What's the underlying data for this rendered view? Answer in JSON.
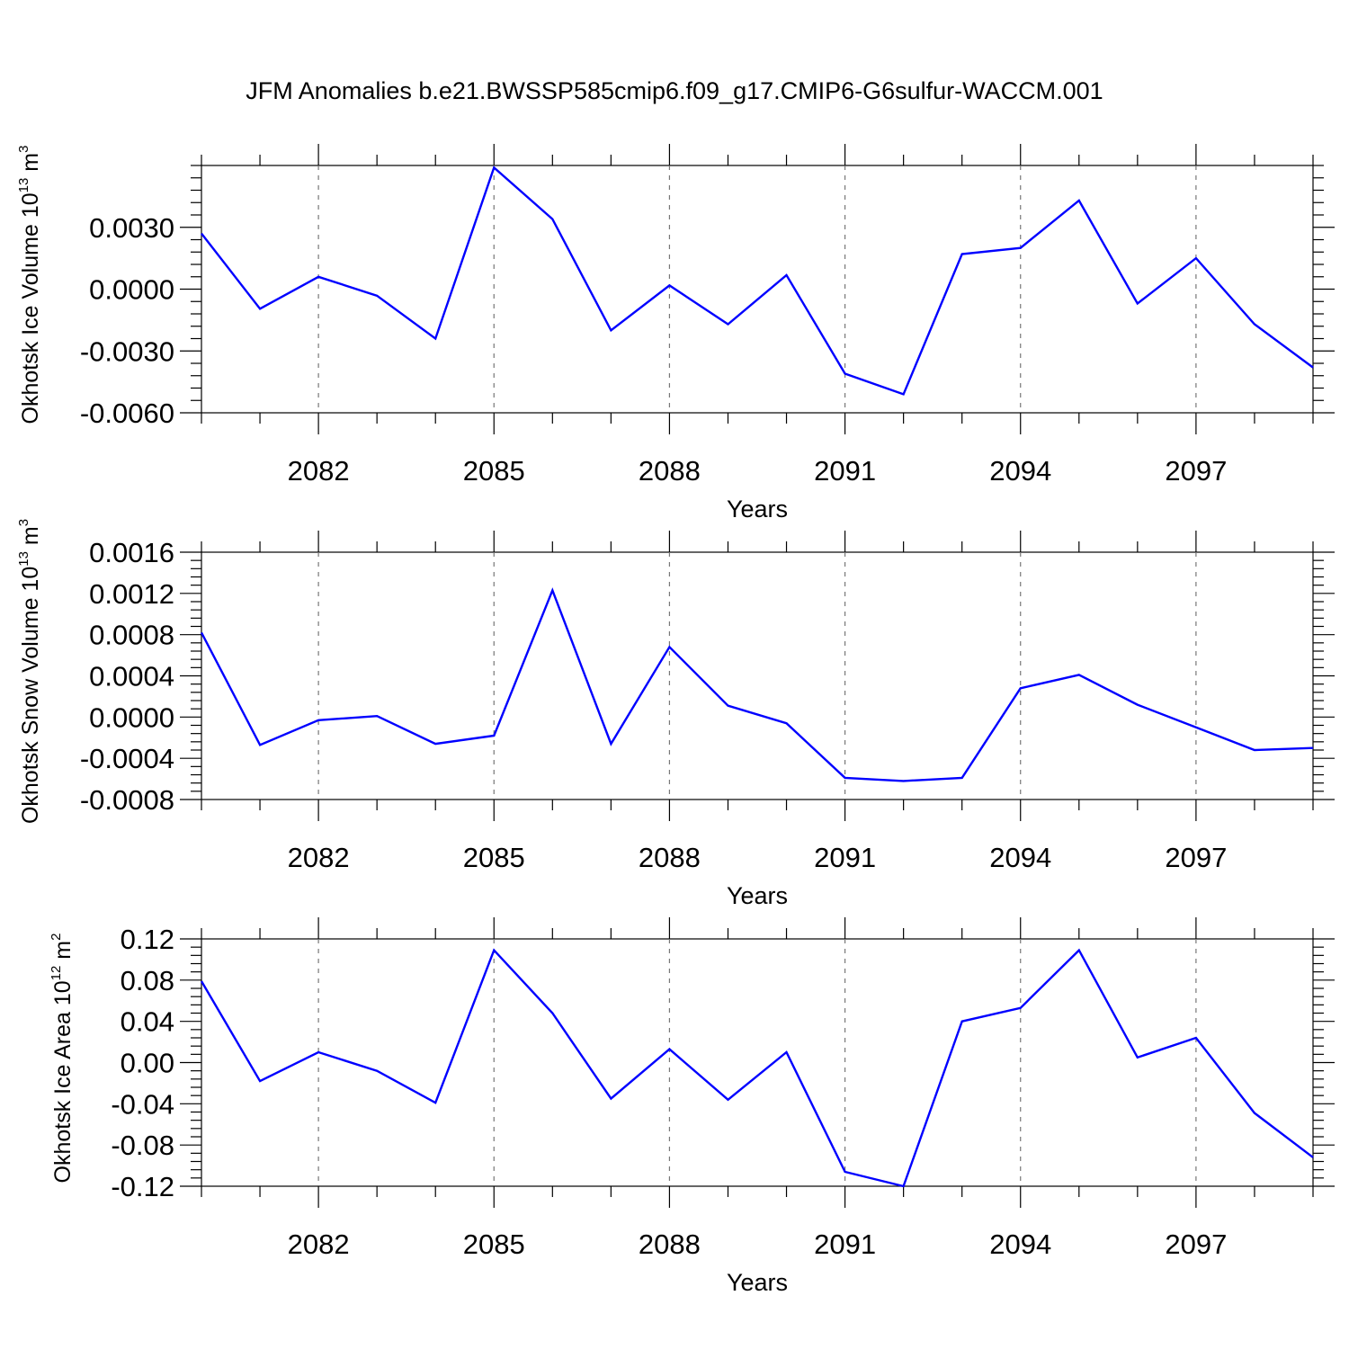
{
  "figure_title": "JFM Anomalies b.e21.BWSSP585cmip6.f09_g17.CMIP6-G6sulfur-WACCM.001",
  "colors": {
    "line": "#0000ff",
    "axis": "#000000",
    "grid": "#777777"
  },
  "chart_data": [
    {
      "type": "line",
      "ylabel": {
        "main": "Okhotsk Ice Volume 10",
        "sup": "13",
        "unit": " m",
        "unit_sup": "3"
      },
      "xlabel": "Years",
      "x": [
        2080,
        2081,
        2082,
        2083,
        2084,
        2085,
        2086,
        2087,
        2088,
        2089,
        2090,
        2091,
        2092,
        2093,
        2094,
        2095,
        2096,
        2097,
        2098,
        2099
      ],
      "values": [
        0.0027,
        -0.00095,
        0.0006,
        -0.00032,
        -0.0024,
        0.0059,
        0.0034,
        -0.002,
        0.00018,
        -0.0017,
        0.00068,
        -0.0041,
        -0.0051,
        0.0017,
        0.002,
        0.0043,
        -0.0007,
        0.0015,
        -0.0017,
        -0.0038
      ],
      "xlim": [
        2080,
        2099
      ],
      "ylim": [
        -0.006,
        0.006
      ],
      "yticks": [
        -0.006,
        -0.003,
        0,
        0.003
      ],
      "ytick_labels": [
        "-0.0060",
        "-0.0030",
        "0.0000",
        "0.0030"
      ],
      "xticks": [
        2082,
        2085,
        2088,
        2091,
        2094,
        2097
      ],
      "xtick_labels": [
        "2082",
        "2085",
        "2088",
        "2091",
        "2094",
        "2097"
      ],
      "grid": "vertical dashed at major x ticks"
    },
    {
      "type": "line",
      "ylabel": {
        "main": "Okhotsk Snow Volume 10",
        "sup": "13",
        "unit": " m",
        "unit_sup": "3"
      },
      "xlabel": "Years",
      "x": [
        2080,
        2081,
        2082,
        2083,
        2084,
        2085,
        2086,
        2087,
        2088,
        2089,
        2090,
        2091,
        2092,
        2093,
        2094,
        2095,
        2096,
        2097,
        2098,
        2099
      ],
      "values": [
        0.00082,
        -0.00027,
        -3e-05,
        1e-05,
        -0.00026,
        -0.00018,
        0.00123,
        -0.00026,
        0.00068,
        0.00011,
        -6e-05,
        -0.00059,
        -0.00062,
        -0.00059,
        0.00028,
        0.00041,
        0.00012,
        -0.0001,
        -0.00032,
        -0.0003
      ],
      "xlim": [
        2080,
        2099
      ],
      "ylim": [
        -0.0008,
        0.0016
      ],
      "yticks": [
        -0.0008,
        -0.0004,
        0,
        0.0004,
        0.0008,
        0.0012,
        0.0016
      ],
      "ytick_labels": [
        "-0.0008",
        "-0.0004",
        "0.0000",
        "0.0004",
        "0.0008",
        "0.0012",
        "0.0016"
      ],
      "xticks": [
        2082,
        2085,
        2088,
        2091,
        2094,
        2097
      ],
      "xtick_labels": [
        "2082",
        "2085",
        "2088",
        "2091",
        "2094",
        "2097"
      ],
      "grid": "vertical dashed at major x ticks"
    },
    {
      "type": "line",
      "ylabel": {
        "main": "Okhotsk Ice Area 10",
        "sup": "12",
        "unit": " m",
        "unit_sup": "2"
      },
      "xlabel": "Years",
      "x": [
        2080,
        2081,
        2082,
        2083,
        2084,
        2085,
        2086,
        2087,
        2088,
        2089,
        2090,
        2091,
        2092,
        2093,
        2094,
        2095,
        2096,
        2097,
        2098,
        2099
      ],
      "values": [
        0.079,
        -0.018,
        0.01,
        -0.008,
        -0.039,
        0.109,
        0.048,
        -0.035,
        0.013,
        -0.036,
        0.01,
        -0.106,
        -0.12,
        0.04,
        0.053,
        0.109,
        0.005,
        0.024,
        -0.049,
        -0.092
      ],
      "xlim": [
        2080,
        2099
      ],
      "ylim": [
        -0.12,
        0.12
      ],
      "yticks": [
        -0.12,
        -0.08,
        -0.04,
        0,
        0.04,
        0.08,
        0.12
      ],
      "ytick_labels": [
        "-0.12",
        "-0.08",
        "-0.04",
        "0.00",
        "0.04",
        "0.08",
        "0.12"
      ],
      "xticks": [
        2082,
        2085,
        2088,
        2091,
        2094,
        2097
      ],
      "xtick_labels": [
        "2082",
        "2085",
        "2088",
        "2091",
        "2094",
        "2097"
      ],
      "grid": "vertical dashed at major x ticks"
    }
  ]
}
